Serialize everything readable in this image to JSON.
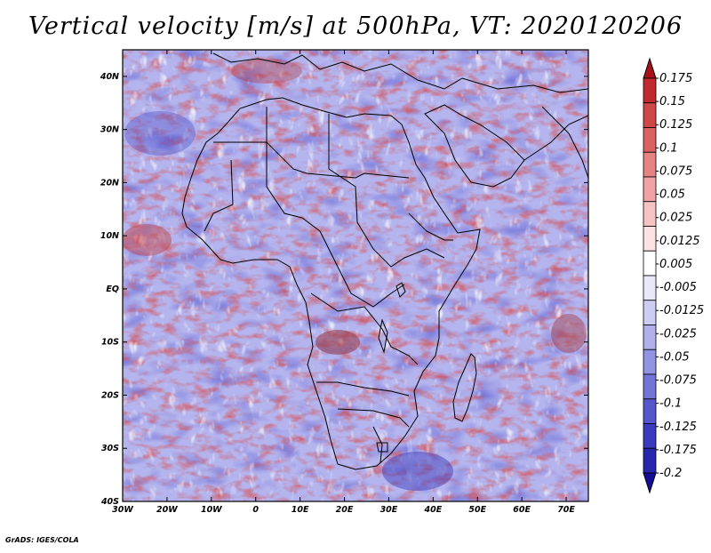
{
  "title": "Vertical velocity [m/s] at 500hPa, VT: 2020120206",
  "credit": "GrADS: IGES/COLA",
  "map": {
    "lat_ticks": [
      "40N",
      "30N",
      "20N",
      "10N",
      "EQ",
      "10S",
      "20S",
      "30S",
      "40S"
    ],
    "lon_ticks": [
      "30W",
      "20W",
      "10W",
      "0",
      "10E",
      "20E",
      "30E",
      "40E",
      "50E",
      "60E",
      "70E"
    ],
    "lon_range": [
      -30,
      75
    ],
    "lat_range": [
      -40,
      45
    ]
  },
  "colorbar": {
    "labels": [
      "0.175",
      "0.15",
      "0.125",
      "0.1",
      "0.075",
      "0.05",
      "0.025",
      "0.0125",
      "0.005",
      "-0.005",
      "-0.0125",
      "-0.025",
      "-0.05",
      "-0.075",
      "-0.1",
      "-0.125",
      "-0.175",
      "-0.2"
    ],
    "colors": [
      "#a5121b",
      "#c02a2f",
      "#cf4848",
      "#db6262",
      "#e68282",
      "#efa3a3",
      "#f6c3c3",
      "#fbe3e3",
      "#ffffff",
      "#e8e8fa",
      "#cdcdf3",
      "#b0b0ec",
      "#9393e3",
      "#7373d8",
      "#5656cc",
      "#3a3abf",
      "#2626ae",
      "#160c9a"
    ]
  }
}
